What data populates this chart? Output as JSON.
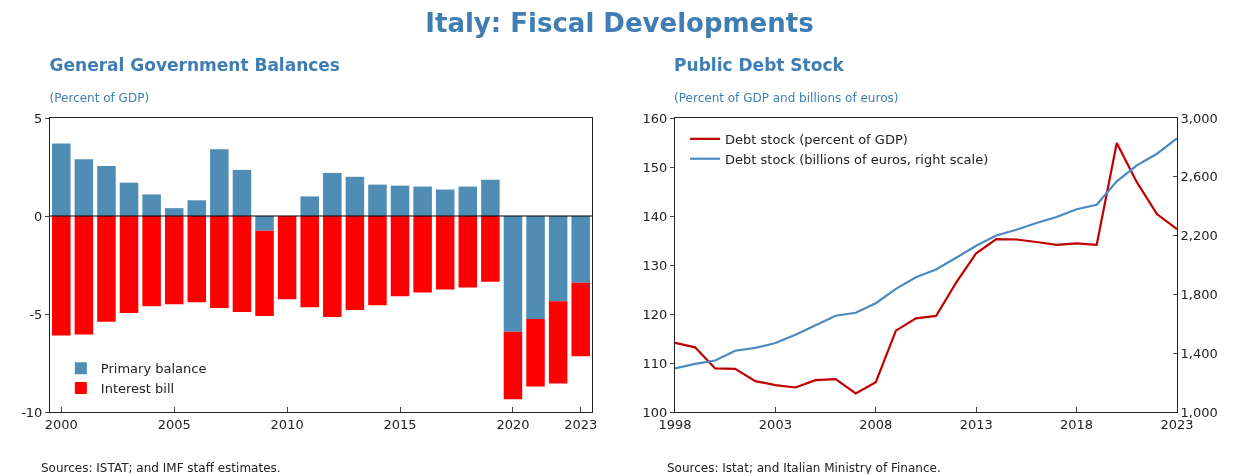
{
  "chart_data": [
    {
      "type": "other",
      "title": "Italy: Fiscal Developments"
    },
    {
      "type": "bar",
      "title": "General Government Balances",
      "subtitle": "(Percent of GDP)",
      "stacked": true,
      "x": [
        2000,
        2001,
        2002,
        2003,
        2004,
        2005,
        2006,
        2007,
        2008,
        2009,
        2010,
        2011,
        2012,
        2013,
        2014,
        2015,
        2016,
        2017,
        2018,
        2019,
        2020,
        2021,
        2022,
        2023
      ],
      "series": [
        {
          "name": "Primary balance",
          "color": "#4f8db5",
          "values": [
            3.7,
            2.9,
            2.55,
            1.7,
            1.1,
            0.4,
            0.8,
            3.4,
            2.35,
            -0.75,
            0,
            1.0,
            2.2,
            2.0,
            1.6,
            1.55,
            1.5,
            1.35,
            1.5,
            1.85,
            -5.9,
            -5.25,
            -4.35,
            -3.4
          ]
        },
        {
          "name": "Interest bill",
          "color": "#ff0000",
          "values": [
            -6.1,
            -6.05,
            -5.4,
            -4.95,
            -4.6,
            -4.5,
            -4.4,
            -4.7,
            -4.9,
            -4.35,
            -4.25,
            -4.65,
            -5.15,
            -4.8,
            -4.55,
            -4.1,
            -3.9,
            -3.75,
            -3.65,
            -3.35,
            -3.45,
            -3.45,
            -4.2,
            -3.75
          ]
        }
      ],
      "xlim": [
        1999.5,
        2023.5
      ],
      "xticks": [
        2000,
        2005,
        2010,
        2015,
        2020,
        2023
      ],
      "ylim": [
        -10,
        5
      ],
      "yticks": [
        -10,
        -5,
        0,
        5
      ],
      "grid": false,
      "legend": "bottom left",
      "ref_lines": [
        {
          "axis": "y",
          "value": 0,
          "color": "#000000"
        }
      ],
      "annotations": [
        "Sources: ISTAT; and IMF staff estimates."
      ]
    },
    {
      "type": "line",
      "title": "Public Debt Stock",
      "subtitle": "(Percent of GDP and billions of euros)",
      "x": [
        1998,
        1999,
        2000,
        2001,
        2002,
        2003,
        2004,
        2005,
        2006,
        2007,
        2008,
        2009,
        2010,
        2011,
        2012,
        2013,
        2014,
        2015,
        2016,
        2017,
        2018,
        2019,
        2020,
        2021,
        2022,
        2023
      ],
      "series": [
        {
          "name": "Debt stock (percent of GDP)",
          "color": "#c00000",
          "values": [
            114.1,
            113.2,
            108.9,
            108.8,
            106.3,
            105.5,
            105.0,
            106.5,
            106.7,
            103.8,
            106.1,
            116.6,
            119.1,
            119.6,
            126.4,
            132.4,
            135.3,
            135.2,
            134.7,
            134.1,
            134.4,
            134.1,
            154.9,
            146.9,
            140.4,
            137.3
          ]
        },
        {
          "name": "Debt stock (billions of euros, right scale)",
          "color": "#4a8ac0",
          "axis": "y2",
          "values": [
            1296,
            1327,
            1350,
            1417,
            1436,
            1469,
            1526,
            1590,
            1655,
            1675,
            1740,
            1838,
            1917,
            1969,
            2049,
            2131,
            2201,
            2240,
            2286,
            2327,
            2379,
            2410,
            2569,
            2678,
            2757,
            2861
          ]
        }
      ],
      "xlim": [
        1998,
        2023
      ],
      "xticks": [
        1998,
        2003,
        2008,
        2013,
        2018,
        2023
      ],
      "ylim": [
        100,
        160
      ],
      "yticks": [
        100,
        110,
        120,
        130,
        140,
        150,
        160
      ],
      "y2lim": [
        1000,
        3000
      ],
      "y2ticks": [
        {
          "value": 1000,
          "label": "1,000"
        },
        {
          "value": 1400,
          "label": "1,400"
        },
        {
          "value": 1800,
          "label": "1,800"
        },
        {
          "value": 2200,
          "label": "2,200"
        },
        {
          "value": 2600,
          "label": "2,600"
        },
        {
          "value": 3000,
          "label": "3,000"
        }
      ],
      "grid": false,
      "legend": "top left",
      "marker": "none",
      "line_style": "solid",
      "annotations": [
        "Sources: Istat; and Italian Ministry of Finance."
      ]
    }
  ]
}
